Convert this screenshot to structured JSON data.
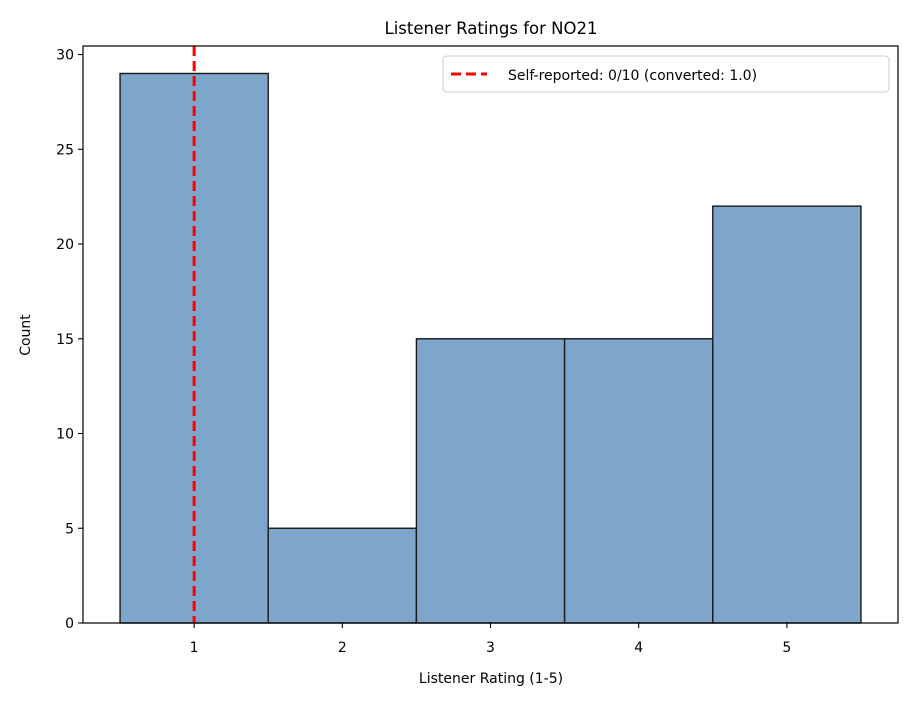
{
  "chart_data": {
    "type": "bar",
    "title": "Listener Ratings for NO21",
    "xlabel": "Listener Rating (1-5)",
    "ylabel": "Count",
    "categories": [
      "1",
      "2",
      "3",
      "4",
      "5"
    ],
    "x": [
      1,
      2,
      3,
      4,
      5
    ],
    "values": [
      29,
      5,
      15,
      15,
      22
    ],
    "xlim": [
      0.25,
      5.75
    ],
    "ylim": [
      0,
      30.45
    ],
    "yticks": [
      0,
      5,
      10,
      15,
      20,
      25,
      30
    ],
    "reference_line": {
      "x": 1.0,
      "label": "Self-reported: 0/10 (converted: 1.0)",
      "style": "dashed"
    },
    "legend_position": "top-right",
    "grid": false,
    "colors": {
      "bar_fill": "#7ea6ca",
      "bar_edge": "#1a1a1a",
      "reference_line": "#ff0000"
    }
  }
}
